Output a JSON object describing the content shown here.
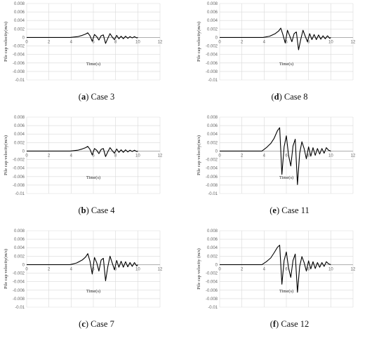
{
  "chart_data": [
    {
      "type": "line",
      "caption_letter": "a",
      "caption_rest": "Case 3",
      "xlabel": "Time(s)",
      "ylabel": "Pile cap velocity(m/s)",
      "xlim": [
        0,
        12
      ],
      "ylim": [
        -0.01,
        0.008
      ],
      "xticks": [
        0,
        2,
        4,
        6,
        8,
        10,
        12
      ],
      "yticks": [
        0.008,
        0.006,
        0.004,
        0.002,
        0,
        -0.002,
        -0.004,
        -0.006,
        -0.008,
        -0.01
      ],
      "ytick_labels": [
        "0.008",
        "0.006",
        "0.004",
        "0.002",
        "0",
        "-0.002",
        "-0.004",
        "-0.006",
        "-0.008",
        "-0.01"
      ],
      "grid": true,
      "series": [
        {
          "x": [
            0,
            3.9,
            4.6,
            5.0,
            5.3,
            5.5,
            5.7,
            5.9,
            6.1,
            6.3,
            6.5,
            6.7,
            6.9,
            7.1,
            7.3,
            7.5,
            7.7,
            7.9,
            8.1,
            8.3,
            8.5,
            8.7,
            8.9,
            9.1,
            9.3,
            9.5,
            9.7,
            9.9,
            10.0
          ],
          "y": [
            0,
            0,
            0.0002,
            0.0005,
            0.0008,
            0.0011,
            0.0004,
            -0.0009,
            0.0007,
            0.0002,
            -0.0006,
            0.0004,
            0.0006,
            -0.0014,
            -0.0002,
            0.0009,
            0.0001,
            -0.0005,
            0.0005,
            -0.0003,
            0.0003,
            -0.0003,
            0.0003,
            -0.0002,
            0.0002,
            -0.0001,
            0.0002,
            -0.0001,
            0
          ]
        }
      ]
    },
    {
      "type": "line",
      "caption_letter": "d",
      "caption_rest": "Case 8",
      "xlabel": "Time(s)",
      "ylabel": "Pile cap velocity(m/s)",
      "xlim": [
        0,
        12
      ],
      "ylim": [
        -0.01,
        0.008
      ],
      "xticks": [
        0,
        2,
        4,
        6,
        8,
        10,
        12
      ],
      "yticks": [
        0.008,
        0.006,
        0.004,
        0.002,
        0,
        -0.002,
        -0.004,
        -0.006,
        -0.008,
        -0.01
      ],
      "ytick_labels": [
        "0.008",
        "0.006",
        "0.004",
        "0.002",
        "0",
        "-0.002",
        "-0.004",
        "-0.006",
        "-0.008",
        "-0.01"
      ],
      "grid": true,
      "series": [
        {
          "x": [
            0,
            3.9,
            4.5,
            5.0,
            5.3,
            5.5,
            5.7,
            5.9,
            6.1,
            6.3,
            6.5,
            6.7,
            6.9,
            7.1,
            7.3,
            7.5,
            7.7,
            7.9,
            8.1,
            8.3,
            8.5,
            8.7,
            8.9,
            9.1,
            9.3,
            9.5,
            9.7,
            9.9,
            10.0
          ],
          "y": [
            0,
            0,
            0.0003,
            0.0009,
            0.0015,
            0.0022,
            0.0006,
            -0.0013,
            0.0017,
            0.0004,
            -0.001,
            0.0009,
            0.0013,
            -0.0029,
            -0.0004,
            0.0017,
            0.0003,
            -0.001,
            0.0009,
            -0.0005,
            0.0007,
            -0.0005,
            0.0006,
            -0.0004,
            0.0004,
            -0.0003,
            0.0004,
            -0.0002,
            0
          ]
        }
      ]
    },
    {
      "type": "line",
      "caption_letter": "b",
      "caption_rest": "Case 4",
      "xlabel": "Time(s)",
      "ylabel": "Pile cap velocity(m/s)",
      "xlim": [
        0,
        12
      ],
      "ylim": [
        -0.01,
        0.008
      ],
      "xticks": [
        0,
        2,
        4,
        6,
        8,
        10,
        12
      ],
      "yticks": [
        0.008,
        0.006,
        0.004,
        0.002,
        0,
        -0.002,
        -0.004,
        -0.006,
        -0.008,
        -0.01
      ],
      "ytick_labels": [
        "0.008",
        "0.006",
        "0.004",
        "0.002",
        "0",
        "-0.002",
        "-0.004",
        "-0.006",
        "-0.008",
        "-0.01"
      ],
      "grid": true,
      "series": [
        {
          "x": [
            0,
            3.9,
            4.6,
            5.0,
            5.3,
            5.5,
            5.7,
            5.9,
            6.1,
            6.3,
            6.5,
            6.7,
            6.9,
            7.1,
            7.3,
            7.5,
            7.7,
            7.9,
            8.1,
            8.3,
            8.5,
            8.7,
            8.9,
            9.1,
            9.3,
            9.5,
            9.7,
            9.9,
            10.0
          ],
          "y": [
            0,
            0,
            0.0002,
            0.0005,
            0.0008,
            0.0011,
            0.0004,
            -0.0009,
            0.0006,
            0.0002,
            -0.0006,
            0.0004,
            0.0006,
            -0.0013,
            -0.0002,
            0.0008,
            0.0001,
            -0.0005,
            0.0005,
            -0.0003,
            0.0003,
            -0.0003,
            0.0003,
            -0.0002,
            0.0002,
            -0.0001,
            0.0002,
            -0.0001,
            0
          ]
        }
      ]
    },
    {
      "type": "line",
      "caption_letter": "e",
      "caption_rest": "Case 11",
      "xlabel": "Time(s)",
      "ylabel": "Pile cap velocity(m/s)",
      "xlim": [
        0,
        12
      ],
      "ylim": [
        -0.01,
        0.008
      ],
      "xticks": [
        0,
        2,
        4,
        6,
        8,
        10,
        12
      ],
      "yticks": [
        0.008,
        0.006,
        0.004,
        0.002,
        0,
        -0.002,
        -0.004,
        -0.006,
        -0.008,
        -0.01
      ],
      "ytick_labels": [
        "0.008",
        "0.006",
        "0.004",
        "0.002",
        "0",
        "-0.002",
        "-0.004",
        "-0.006",
        "-0.008",
        "-0.01"
      ],
      "grid": true,
      "series": [
        {
          "x": [
            0,
            3.8,
            4.2,
            4.6,
            4.9,
            5.2,
            5.4,
            5.6,
            5.8,
            6.0,
            6.2,
            6.4,
            6.6,
            6.8,
            7.0,
            7.2,
            7.4,
            7.6,
            7.8,
            8.0,
            8.2,
            8.4,
            8.6,
            8.8,
            9.0,
            9.2,
            9.4,
            9.6,
            9.8,
            10.0
          ],
          "y": [
            0,
            0,
            0.0008,
            0.0018,
            0.003,
            0.0048,
            0.0055,
            -0.0055,
            0.001,
            0.0036,
            -0.001,
            -0.0035,
            0.0012,
            0.0028,
            -0.0079,
            -0.0005,
            0.0022,
            0.0006,
            -0.0018,
            0.001,
            -0.0012,
            0.0008,
            -0.001,
            0.0006,
            -0.0007,
            0.0006,
            -0.0005,
            0.0008,
            0.0002,
            0
          ]
        }
      ]
    },
    {
      "type": "line",
      "caption_letter": "c",
      "caption_rest": "Case 7",
      "xlabel": "Time(s)",
      "ylabel": "Pile cap velocity(m/s)",
      "xlim": [
        0,
        12
      ],
      "ylim": [
        -0.01,
        0.008
      ],
      "xticks": [
        0,
        2,
        4,
        6,
        8,
        10,
        12
      ],
      "yticks": [
        0.008,
        0.006,
        0.004,
        0.002,
        0,
        -0.002,
        -0.004,
        -0.006,
        -0.008,
        -0.01
      ],
      "ytick_labels": [
        "0.008",
        "0.006",
        "0.004",
        "0.002",
        "0",
        "-0.002",
        "-0.004",
        "-0.006",
        "-0.008",
        "-0.01"
      ],
      "grid": true,
      "series": [
        {
          "x": [
            0,
            3.9,
            4.5,
            5.0,
            5.3,
            5.5,
            5.7,
            5.9,
            6.1,
            6.3,
            6.5,
            6.7,
            6.9,
            7.1,
            7.3,
            7.5,
            7.7,
            7.9,
            8.1,
            8.3,
            8.5,
            8.7,
            8.9,
            9.1,
            9.3,
            9.5,
            9.7,
            9.9,
            10.0
          ],
          "y": [
            0,
            0,
            0.0004,
            0.0011,
            0.0018,
            0.0026,
            0.0008,
            -0.0022,
            0.0017,
            0.0005,
            -0.0015,
            0.0011,
            0.0015,
            -0.0038,
            -0.0005,
            0.002,
            0.0004,
            -0.0012,
            0.001,
            -0.0006,
            0.0008,
            -0.0006,
            0.0007,
            -0.0005,
            0.0005,
            -0.0004,
            0.0005,
            -0.0003,
            0
          ]
        }
      ]
    },
    {
      "type": "line",
      "caption_letter": "f",
      "caption_rest": "Case 12",
      "xlabel": "Time(s)",
      "ylabel": "Pile cap velocity (m/s)",
      "xlim": [
        0,
        12
      ],
      "ylim": [
        -0.01,
        0.008
      ],
      "xticks": [
        0,
        2,
        4,
        6,
        8,
        10,
        12
      ],
      "yticks": [
        0.008,
        0.006,
        0.004,
        0.002,
        0,
        -0.002,
        -0.004,
        -0.006,
        -0.008,
        -0.01
      ],
      "ytick_labels": [
        "0.008",
        "0.006",
        "0.004",
        "0.002",
        "0",
        "-0.002",
        "-0.004",
        "-0.006",
        "-0.008",
        "-0.01"
      ],
      "grid": true,
      "series": [
        {
          "x": [
            0,
            3.8,
            4.2,
            4.6,
            4.9,
            5.2,
            5.4,
            5.6,
            5.8,
            6.0,
            6.2,
            6.4,
            6.6,
            6.8,
            7.0,
            7.2,
            7.4,
            7.6,
            7.8,
            8.0,
            8.2,
            8.4,
            8.6,
            8.8,
            9.0,
            9.2,
            9.4,
            9.6,
            9.8,
            10.0
          ],
          "y": [
            0,
            0,
            0.0007,
            0.0016,
            0.0028,
            0.0041,
            0.0046,
            -0.0046,
            0.001,
            0.003,
            -0.0008,
            -0.003,
            0.001,
            0.0025,
            -0.0065,
            -0.0004,
            0.0019,
            0.0005,
            -0.0015,
            0.0009,
            -0.001,
            0.0007,
            -0.0009,
            0.0005,
            -0.0006,
            0.0005,
            -0.0004,
            0.0007,
            0.0002,
            0
          ]
        }
      ]
    }
  ]
}
